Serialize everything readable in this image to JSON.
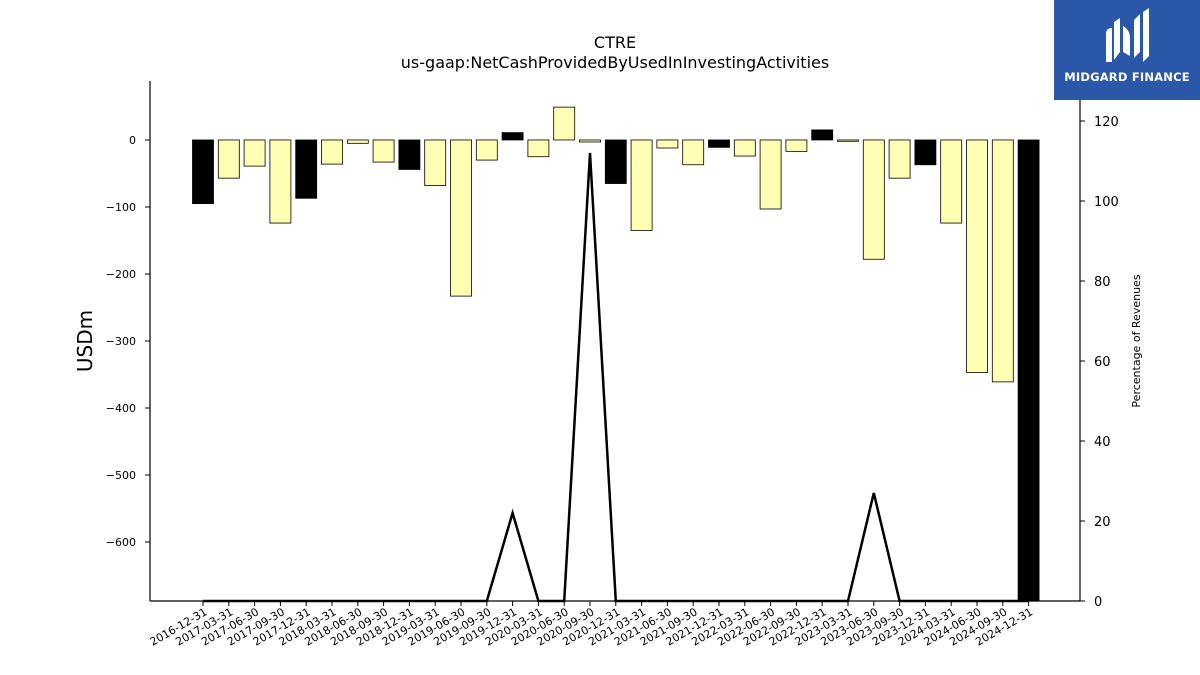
{
  "chart_data": {
    "type": "bar",
    "title": "CTRE",
    "subtitle": "us-gaap:NetCashProvidedByUsedInInvestingActivities",
    "ylabel": "USDm",
    "y2label": "Percentage of Revenues",
    "ylim": [
      -688,
      88
    ],
    "y2lim": [
      0,
      130
    ],
    "yticks": [
      0,
      -100,
      -200,
      -300,
      -400,
      -500,
      -600
    ],
    "y2ticks": [
      0,
      20,
      40,
      60,
      80,
      100,
      120
    ],
    "grid": false,
    "colors": {
      "q4_bar": "#000000",
      "other_bar": "#ffffb3",
      "bar_edge": "#000000",
      "line": "#000000"
    },
    "categories": [
      "2016-12-31",
      "2017-03-31",
      "2017-06-30",
      "2017-09-30",
      "2017-12-31",
      "2018-03-31",
      "2018-06-30",
      "2018-09-30",
      "2018-12-31",
      "2019-03-31",
      "2019-06-30",
      "2019-09-30",
      "2019-12-31",
      "2020-03-31",
      "2020-06-30",
      "2020-09-30",
      "2020-12-31",
      "2021-03-31",
      "2021-06-30",
      "2021-09-30",
      "2021-12-31",
      "2022-03-31",
      "2022-06-30",
      "2022-09-30",
      "2022-12-31",
      "2023-03-31",
      "2023-06-30",
      "2023-09-30",
      "2023-12-31",
      "2024-03-31",
      "2024-06-30",
      "2024-09-30",
      "2024-12-31"
    ],
    "series": [
      {
        "type": "bar",
        "values": [
          -95,
          -57,
          -39,
          -124,
          -87,
          -36,
          -5,
          -33,
          -44,
          -68,
          -233,
          -30,
          11,
          -25,
          49,
          -3,
          -65,
          -135,
          -12,
          -37,
          -11,
          -24,
          -103,
          -17,
          15,
          -2,
          -178,
          -57,
          -37,
          -124,
          -347,
          -361,
          -688
        ]
      },
      {
        "type": "line",
        "axis": "right",
        "values": [
          0,
          0,
          0,
          0,
          0,
          0,
          0,
          0,
          0,
          0,
          0,
          0,
          22,
          0,
          0,
          112,
          0,
          0,
          0,
          0,
          0,
          0,
          0,
          0,
          0,
          0,
          27,
          0,
          0,
          0,
          0,
          0,
          0
        ],
        "note": ""
      }
    ]
  },
  "logo": {
    "text": "MIDGARD FINANCE"
  }
}
